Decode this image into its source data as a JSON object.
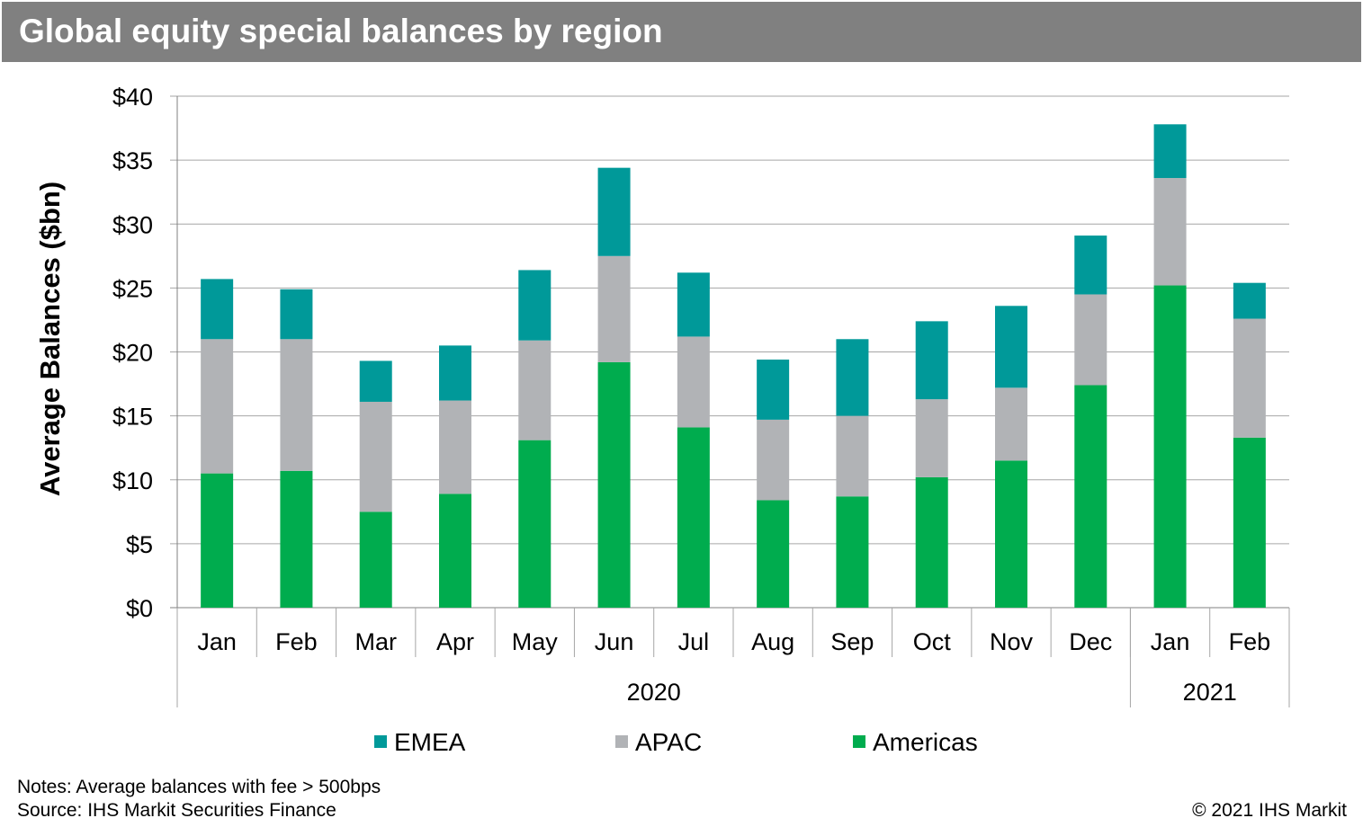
{
  "chart_data": {
    "type": "bar",
    "stacked": true,
    "title": "Global equity special balances by region",
    "ylabel": "Average Balances ($bn)",
    "ylim": [
      0,
      40
    ],
    "yticks": [
      0,
      5,
      10,
      15,
      20,
      25,
      30,
      35,
      40
    ],
    "ytick_labels": [
      "$0",
      "$5",
      "$10",
      "$15",
      "$20",
      "$25",
      "$30",
      "$35",
      "$40"
    ],
    "categories": [
      "Jan",
      "Feb",
      "Mar",
      "Apr",
      "May",
      "Jun",
      "Jul",
      "Aug",
      "Sep",
      "Oct",
      "Nov",
      "Dec",
      "Jan",
      "Feb"
    ],
    "groups": [
      {
        "label": "2020",
        "count": 12
      },
      {
        "label": "2021",
        "count": 2
      }
    ],
    "series": [
      {
        "name": "Americas",
        "color": "#00ac4e",
        "values": [
          10.5,
          10.7,
          7.5,
          8.9,
          13.1,
          19.2,
          14.1,
          8.4,
          8.7,
          10.2,
          11.5,
          17.4,
          25.2,
          13.3
        ]
      },
      {
        "name": "APAC",
        "color": "#b1b3b6",
        "values": [
          10.5,
          10.3,
          8.6,
          7.3,
          7.8,
          8.3,
          7.1,
          6.3,
          6.3,
          6.1,
          5.7,
          7.1,
          8.4,
          9.3
        ]
      },
      {
        "name": "EMEA",
        "color": "#009999",
        "values": [
          4.7,
          3.9,
          3.2,
          4.3,
          5.5,
          6.9,
          5.0,
          4.7,
          6.0,
          6.1,
          6.4,
          4.6,
          4.2,
          2.8
        ]
      }
    ],
    "legend_order": [
      "EMEA",
      "APAC",
      "Americas"
    ],
    "legend": "bottom",
    "grid": true
  },
  "notes": {
    "line1": "Notes: Average balances with fee > 500bps",
    "line2": "Source: IHS Markit Securities Finance",
    "copyright": "© 2021 IHS Markit"
  }
}
